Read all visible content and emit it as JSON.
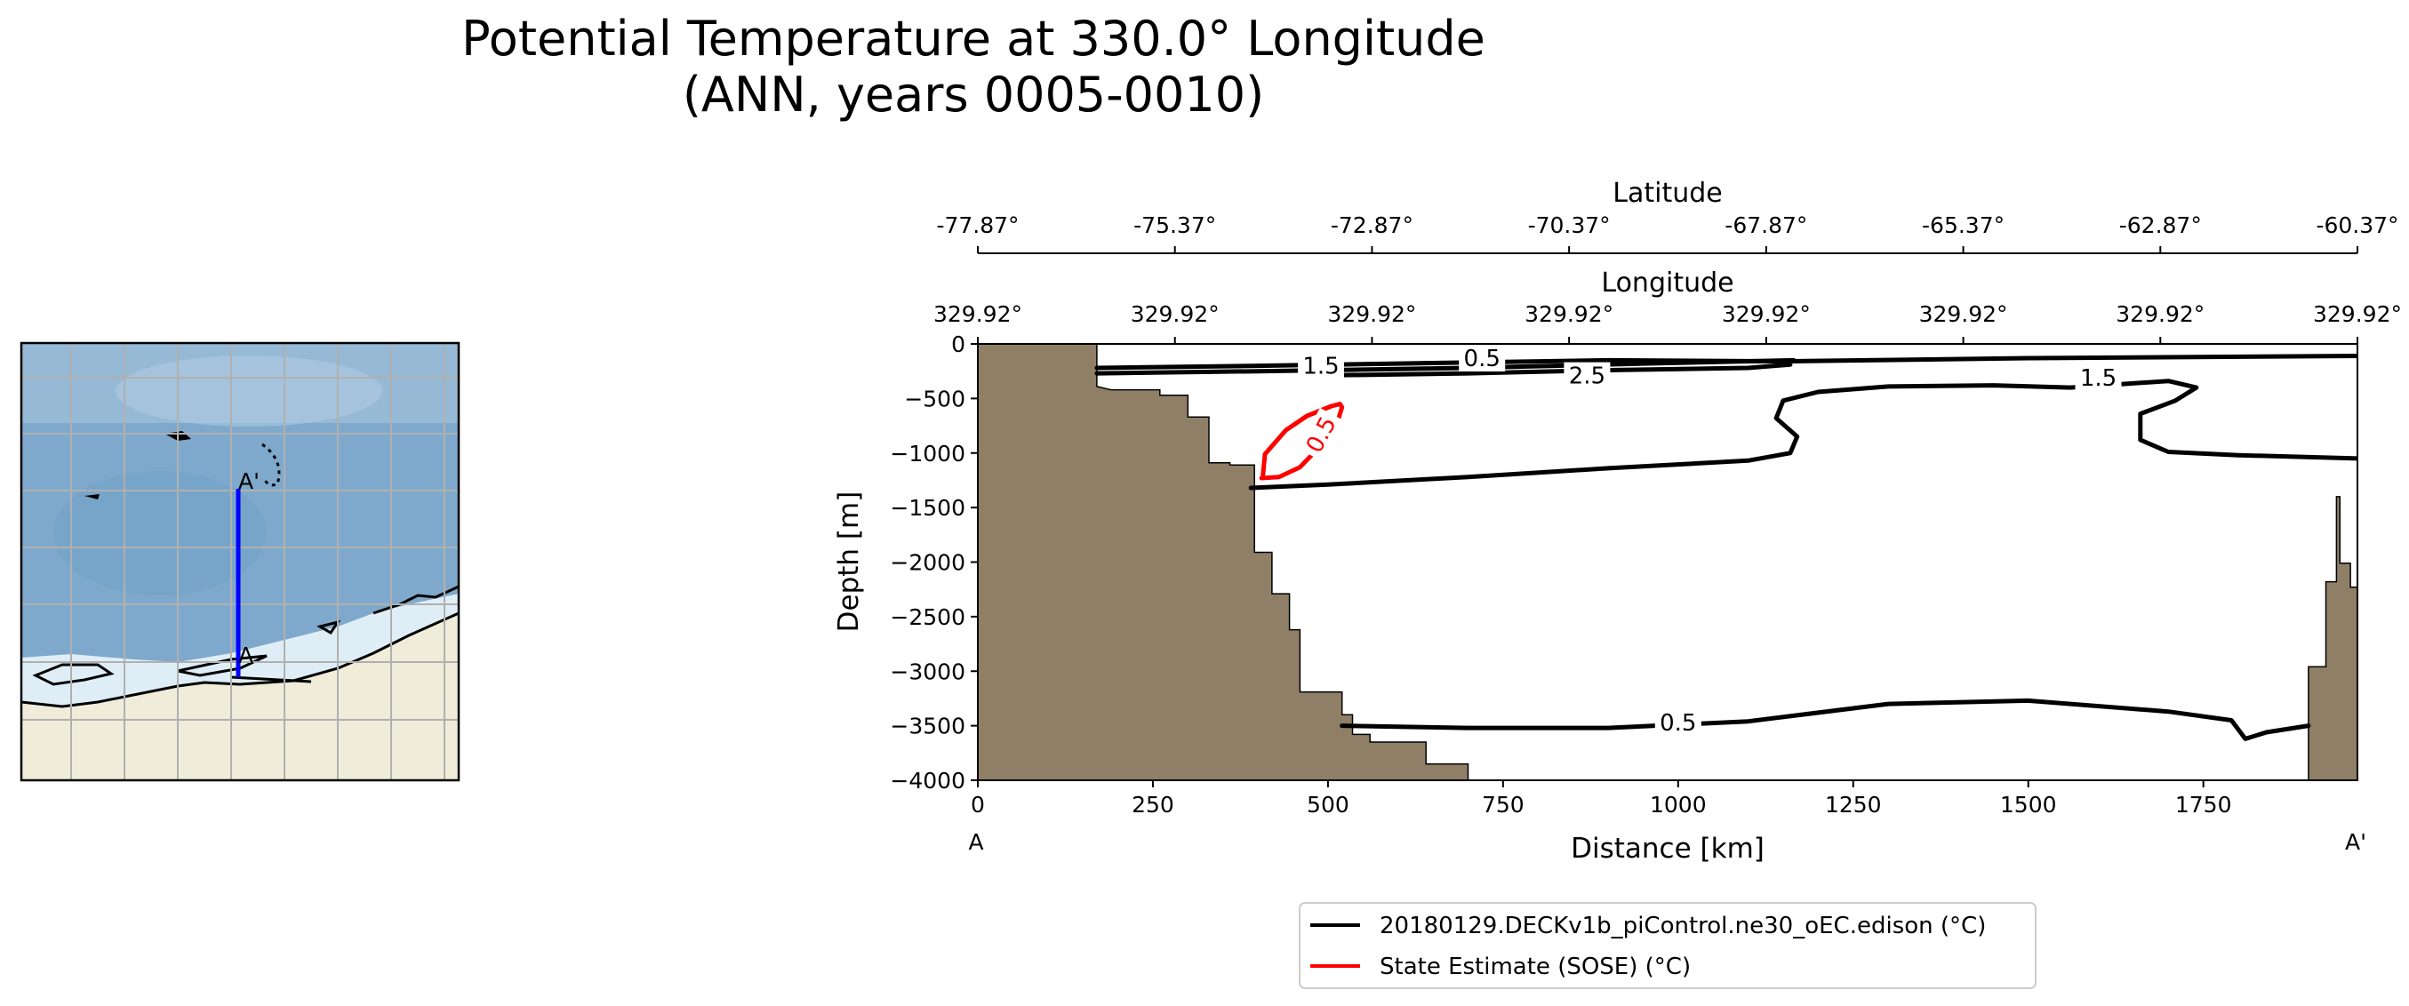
{
  "title_line1": "Potential Temperature at 330.0° Longitude",
  "title_line2": "(ANN, years 0005-0010)",
  "colors": {
    "model": "#000000",
    "obs": "#ff0000",
    "bathymetry": "#8e7f66",
    "ocean": "#7ea9cc",
    "land": "#efecd9",
    "ice": "#dfeef6",
    "transect": "#0000ff",
    "grid": "#b0b0b0"
  },
  "map": {
    "label_start": "A",
    "label_end": "A'"
  },
  "chart_data": {
    "type": "line",
    "subtype": "vertical section with contour lines and bathymetry",
    "xlabel": "Distance [km]",
    "ylabel": "Depth [m]",
    "xlim": [
      0,
      1970
    ],
    "ylim": [
      -4000,
      0
    ],
    "x_ticks": [
      0,
      250,
      500,
      750,
      1000,
      1250,
      1500,
      1750
    ],
    "y_ticks": [
      0,
      -500,
      -1000,
      -1500,
      -2000,
      -2500,
      -3000,
      -3500,
      -4000
    ],
    "x_tick_labels": [
      "0",
      "250",
      "500",
      "750",
      "1000",
      "1250",
      "1500",
      "1750"
    ],
    "y_tick_labels": [
      "0",
      "−500",
      "−1000",
      "−1500",
      "−2000",
      "−2500",
      "−3000",
      "−3500",
      "−4000"
    ],
    "section_start_label": "A",
    "section_end_label": "A'",
    "secondary_axes": [
      {
        "label": "Latitude",
        "tick_labels": [
          "-77.87°",
          "-75.37°",
          "-72.87°",
          "-70.37°",
          "-67.87°",
          "-65.37°",
          "-62.87°",
          "-60.37°"
        ]
      },
      {
        "label": "Longitude",
        "tick_labels": [
          "329.92°",
          "329.92°",
          "329.92°",
          "329.92°",
          "329.92°",
          "329.92°",
          "329.92°",
          "329.92°"
        ]
      }
    ],
    "contour_labels": [
      {
        "series": 0,
        "text": "1.5",
        "x": 490,
        "y": -200
      },
      {
        "series": 0,
        "text": "0.5",
        "x": 720,
        "y": -130
      },
      {
        "series": 0,
        "text": "2.5",
        "x": 870,
        "y": -290
      },
      {
        "series": 0,
        "text": "1.5",
        "x": 1600,
        "y": -310
      },
      {
        "series": 0,
        "text": "0.5",
        "x": 1000,
        "y": -3470
      },
      {
        "series": 1,
        "text": "0.5",
        "x": 490,
        "y": -830
      }
    ],
    "series": [
      {
        "name": "20180129.DECKv1b_piControl.ne30_oEC.edison (°C)",
        "color": "#000000",
        "lines": [
          [
            [
              170,
              -220
            ],
            [
              400,
              -200
            ],
            [
              700,
              -170
            ],
            [
              900,
              -150
            ],
            [
              1150,
              -160
            ],
            [
              1500,
              -130
            ],
            [
              1970,
              -110
            ]
          ],
          [
            [
              170,
              -270
            ],
            [
              400,
              -250
            ],
            [
              700,
              -220
            ],
            [
              950,
              -180
            ],
            [
              1165,
              -150
            ]
          ],
          [
            [
              480,
              -290
            ],
            [
              700,
              -270
            ],
            [
              900,
              -240
            ],
            [
              1100,
              -220
            ],
            [
              1160,
              -190
            ]
          ],
          [
            [
              390,
              -1320
            ],
            [
              500,
              -1290
            ],
            [
              700,
              -1220
            ],
            [
              900,
              -1140
            ],
            [
              1100,
              -1070
            ],
            [
              1160,
              -1000
            ],
            [
              1170,
              -850
            ],
            [
              1140,
              -680
            ],
            [
              1150,
              -520
            ],
            [
              1200,
              -440
            ],
            [
              1300,
              -390
            ],
            [
              1450,
              -380
            ],
            [
              1560,
              -400
            ],
            [
              1700,
              -340
            ],
            [
              1740,
              -400
            ],
            [
              1710,
              -520
            ],
            [
              1660,
              -640
            ],
            [
              1660,
              -880
            ],
            [
              1700,
              -990
            ],
            [
              1800,
              -1020
            ],
            [
              1970,
              -1050
            ]
          ],
          [
            [
              520,
              -3500
            ],
            [
              700,
              -3520
            ],
            [
              900,
              -3520
            ],
            [
              1100,
              -3460
            ],
            [
              1300,
              -3300
            ],
            [
              1500,
              -3270
            ],
            [
              1700,
              -3370
            ],
            [
              1790,
              -3450
            ],
            [
              1810,
              -3620
            ],
            [
              1840,
              -3560
            ],
            [
              1900,
              -3500
            ]
          ]
        ]
      },
      {
        "name": "State Estimate (SOSE) (°C)",
        "color": "#ff0000",
        "lines": [
          [
            [
              407,
              -1215
            ],
            [
              410,
              -1010
            ],
            [
              440,
              -790
            ],
            [
              470,
              -660
            ],
            [
              505,
              -570
            ],
            [
              517,
              -550
            ],
            [
              520,
              -580
            ],
            [
              510,
              -790
            ],
            [
              490,
              -930
            ],
            [
              460,
              -1130
            ],
            [
              430,
              -1220
            ],
            [
              405,
              -1230
            ]
          ]
        ]
      }
    ],
    "bathymetry_west": [
      [
        0,
        0
      ],
      [
        170,
        0
      ],
      [
        170,
        -390
      ],
      [
        190,
        -420
      ],
      [
        260,
        -420
      ],
      [
        260,
        -470
      ],
      [
        300,
        -470
      ],
      [
        300,
        -670
      ],
      [
        330,
        -670
      ],
      [
        330,
        -1090
      ],
      [
        360,
        -1090
      ],
      [
        360,
        -1110
      ],
      [
        395,
        -1110
      ],
      [
        395,
        -1910
      ],
      [
        420,
        -1910
      ],
      [
        420,
        -2290
      ],
      [
        445,
        -2290
      ],
      [
        445,
        -2620
      ],
      [
        460,
        -2620
      ],
      [
        460,
        -3190
      ],
      [
        520,
        -3190
      ],
      [
        520,
        -3400
      ],
      [
        535,
        -3400
      ],
      [
        535,
        -3580
      ],
      [
        560,
        -3580
      ],
      [
        560,
        -3650
      ],
      [
        640,
        -3650
      ],
      [
        640,
        -3850
      ],
      [
        700,
        -3850
      ],
      [
        700,
        -4000
      ],
      [
        0,
        -4000
      ]
    ],
    "bathymetry_east": [
      [
        1970,
        -2230
      ],
      [
        1960,
        -2230
      ],
      [
        1960,
        -2010
      ],
      [
        1945,
        -2010
      ],
      [
        1945,
        -1400
      ],
      [
        1940,
        -1400
      ],
      [
        1940,
        -2180
      ],
      [
        1925,
        -2180
      ],
      [
        1925,
        -2960
      ],
      [
        1900,
        -2960
      ],
      [
        1900,
        -4000
      ],
      [
        1970,
        -4000
      ]
    ]
  }
}
